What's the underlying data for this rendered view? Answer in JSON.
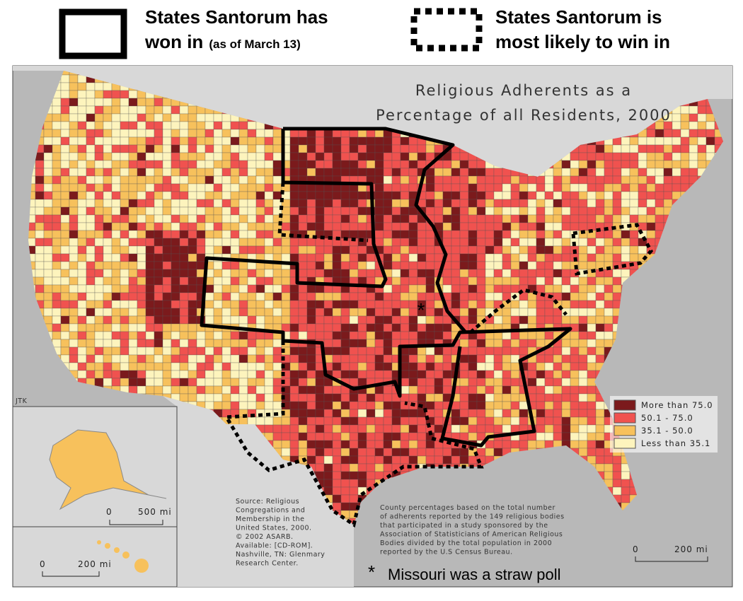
{
  "header": {
    "won_line1": "States Santorum has",
    "won_line2": "won in",
    "won_note": "(as of March 13)",
    "likely_line1": "States Santorum is",
    "likely_line2": "most likely to win in"
  },
  "map": {
    "title_lines": [
      "Religious Adherents as a",
      "Percentage of all Residents, 2000"
    ],
    "legend": [
      {
        "label": "More than 75.0",
        "color": "#7b1a1c"
      },
      {
        "label": "50.1 - 75.0",
        "color": "#f0524f"
      },
      {
        "label": "35.1 - 50.0",
        "color": "#f7c15c"
      },
      {
        "label": "Less than 35.1",
        "color": "#fdf4bd"
      }
    ],
    "credit": "JTK",
    "source_lines": [
      "Source:  Religious",
      "Congregations and",
      "Membership in the",
      "United States, 2000.",
      "© 2002 ASARB.",
      "Available: [CD-ROM].",
      "Nashville, TN: Glenmary",
      "Research Center."
    ],
    "note_lines": [
      "County percentages based on the total number",
      "of adherents reported by the 149 religious bodies",
      "that participated in a study sponsored by the",
      "Association of Statisticians of American Religious",
      "Bodies divided by the total population in 2000",
      "reported by the U.S Census Bureau."
    ],
    "scale_bars": [
      {
        "zero": "0",
        "label": "500 mi"
      },
      {
        "zero": "0",
        "label": "200 mi"
      },
      {
        "zero": "0",
        "label": "200 mi"
      }
    ],
    "asterisk": "*",
    "footnote": "Missouri was a straw poll"
  }
}
